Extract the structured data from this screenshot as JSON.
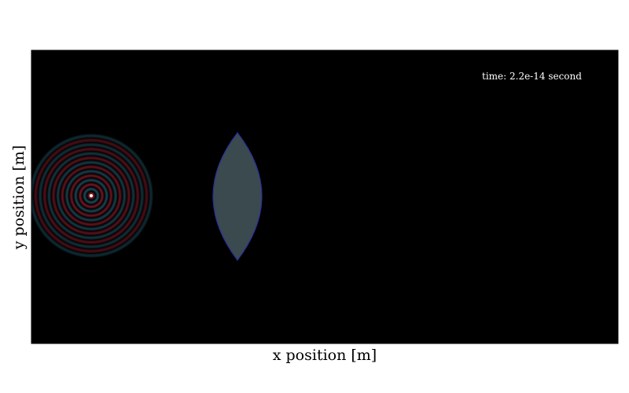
{
  "chart_data": {
    "type": "heatmap",
    "title": "",
    "xlabel": "x position [m]",
    "ylabel": "y position [m]",
    "annotation": "time: 2.2e-14 second",
    "grid": false,
    "background_color": "#000000",
    "wave_colors": {
      "positive": "#8b1a2a",
      "negative": "#1f5566"
    },
    "lens_fill": "#3a4a4e",
    "lens_stroke": "#2a2f9a",
    "source_color": "#ffffff"
  }
}
